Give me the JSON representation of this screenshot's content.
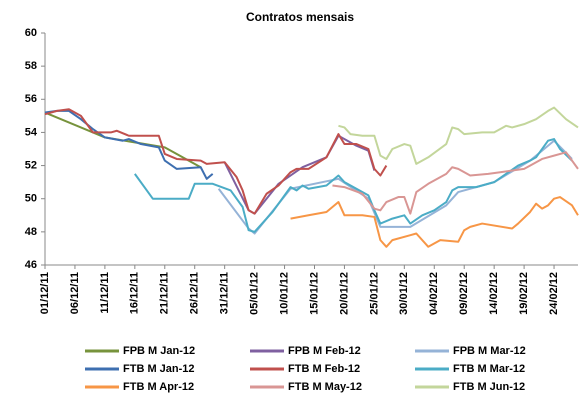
{
  "chart_data": {
    "type": "line",
    "title": "Contratos mensais",
    "xlim": [
      "01/12/11",
      "28/02/12"
    ],
    "xticks": [
      "01/12/11",
      "06/12/11",
      "11/12/11",
      "16/12/11",
      "21/12/11",
      "26/12/11",
      "31/12/11",
      "05/01/12",
      "10/01/12",
      "15/01/12",
      "20/01/12",
      "25/01/12",
      "30/01/12",
      "04/02/12",
      "09/02/12",
      "14/02/12",
      "19/02/12",
      "24/02/12"
    ],
    "ylim": [
      46,
      60
    ],
    "yticks": [
      46,
      48,
      50,
      52,
      54,
      56,
      58,
      60
    ],
    "grid": false,
    "legend": "bottom",
    "series": [
      {
        "name": "FPB M Jan-12",
        "color": "#77933c",
        "x": [
          "01/12/11",
          "11/12/11",
          "21/12/11",
          "27/12/11"
        ],
        "values": [
          55.2,
          53.7,
          53.1,
          51.9
        ]
      },
      {
        "name": "FPB M Feb-12",
        "color": "#7f60a0",
        "x": [
          "31/12/11",
          "04/01/12",
          "05/01/12",
          "09/01/12",
          "13/01/12",
          "17/01/12",
          "19/01/12",
          "22/01/12",
          "24/01/12",
          "25/01/12"
        ],
        "values": [
          52.2,
          49.3,
          49.1,
          50.9,
          51.9,
          52.5,
          53.8,
          53.2,
          52.9,
          51.7
        ]
      },
      {
        "name": "FPB M Mar-12",
        "color": "#95b3d7",
        "x": [
          "30/12/11",
          "04/01/12",
          "05/01/12",
          "11/01/12",
          "19/01/12",
          "24/01/12",
          "26/01/12",
          "31/01/12",
          "06/02/12",
          "08/02/12",
          "14/02/12",
          "20/02/12",
          "24/02/12",
          "27/02/12"
        ],
        "values": [
          50.6,
          48.2,
          47.9,
          50.6,
          51.2,
          50.0,
          48.3,
          48.3,
          49.6,
          50.4,
          51.0,
          52.3,
          53.5,
          52.4
        ]
      },
      {
        "name": "FTB M Jan-12",
        "color": "#3e6fb0",
        "x": [
          "01/12/11",
          "03/12/11",
          "05/12/11",
          "07/12/11",
          "09/12/11",
          "11/12/11",
          "14/12/11",
          "15/12/11",
          "17/12/11",
          "20/12/11",
          "21/12/11",
          "23/12/11",
          "27/12/11",
          "28/12/11",
          "29/12/11"
        ],
        "values": [
          55.2,
          55.3,
          55.3,
          54.8,
          54.2,
          53.7,
          53.5,
          53.6,
          53.3,
          53.1,
          52.3,
          51.8,
          51.9,
          51.2,
          51.5
        ]
      },
      {
        "name": "FTB M Feb-12",
        "color": "#c0504d",
        "x": [
          "01/12/11",
          "03/12/11",
          "05/12/11",
          "07/12/11",
          "09/12/11",
          "12/12/11",
          "13/12/11",
          "15/12/11",
          "20/12/11",
          "21/12/11",
          "23/12/11",
          "27/12/11",
          "28/12/11",
          "31/12/11",
          "02/01/12",
          "03/01/12",
          "04/01/12",
          "05/01/12",
          "07/01/12",
          "09/01/12",
          "11/01/12",
          "12/01/12",
          "14/01/12",
          "17/01/12",
          "19/01/12",
          "20/01/12",
          "22/01/12",
          "24/01/12",
          "25/01/12",
          "26/01/12",
          "27/01/12"
        ],
        "values": [
          55.1,
          55.3,
          55.4,
          55.0,
          54.0,
          54.0,
          54.1,
          53.8,
          53.8,
          52.7,
          52.4,
          52.3,
          52.1,
          52.2,
          51.3,
          50.5,
          49.3,
          49.1,
          50.3,
          50.8,
          51.6,
          51.8,
          51.8,
          52.5,
          53.9,
          53.3,
          53.3,
          53.0,
          51.8,
          51.4,
          52.0
        ]
      },
      {
        "name": "FTB M Mar-12",
        "color": "#4bacc6",
        "x": [
          "16/12/11",
          "19/12/11",
          "25/12/11",
          "26/12/11",
          "29/12/11",
          "01/01/12",
          "03/01/12",
          "04/01/12",
          "05/01/12",
          "08/01/12",
          "11/01/12",
          "12/01/12",
          "13/01/12",
          "14/01/12",
          "17/01/12",
          "19/01/12",
          "20/01/12",
          "24/01/12",
          "25/01/12",
          "26/01/12",
          "28/01/12",
          "30/01/12",
          "31/01/12",
          "02/02/12",
          "04/02/12",
          "06/02/12",
          "07/02/12",
          "08/02/12",
          "11/02/12",
          "14/02/12",
          "16/02/12",
          "18/02/12",
          "20/02/12",
          "21/02/12",
          "23/02/12",
          "24/02/12",
          "25/02/12",
          "27/02/12"
        ],
        "values": [
          51.5,
          50.0,
          50.0,
          50.9,
          50.9,
          50.5,
          49.5,
          48.1,
          48.0,
          49.2,
          50.7,
          50.5,
          50.8,
          50.6,
          50.8,
          51.4,
          51.0,
          50.2,
          49.3,
          48.5,
          48.8,
          49.0,
          48.5,
          49.0,
          49.3,
          49.8,
          50.5,
          50.7,
          50.7,
          51.0,
          51.5,
          52.0,
          52.3,
          52.5,
          53.5,
          53.6,
          53.0,
          52.3
        ]
      },
      {
        "name": "FTB M Apr-12",
        "color": "#f79646",
        "x": [
          "11/01/12",
          "14/01/12",
          "17/01/12",
          "19/01/12",
          "20/01/12",
          "23/01/12",
          "25/01/12",
          "26/01/12",
          "27/01/12",
          "28/01/12",
          "31/01/12",
          "01/02/12",
          "03/02/12",
          "05/02/12",
          "08/02/12",
          "09/02/12",
          "10/02/12",
          "12/02/12",
          "17/02/12",
          "18/02/12",
          "20/02/12",
          "21/02/12",
          "22/02/12",
          "23/02/12",
          "24/02/12",
          "25/02/12",
          "27/02/12",
          "28/02/12"
        ],
        "values": [
          48.8,
          49.0,
          49.2,
          49.8,
          49.0,
          49.0,
          48.9,
          47.5,
          47.1,
          47.5,
          47.8,
          47.9,
          47.1,
          47.5,
          47.4,
          48.1,
          48.3,
          48.5,
          48.2,
          48.5,
          49.2,
          49.7,
          49.4,
          49.6,
          50.0,
          50.1,
          49.6,
          49.0
        ]
      },
      {
        "name": "FTB M May-12",
        "color": "#d99694",
        "x": [
          "18/01/12",
          "20/01/12",
          "23/01/12",
          "25/01/12",
          "26/01/12",
          "27/01/12",
          "29/01/12",
          "30/01/12",
          "31/01/12",
          "01/02/12",
          "03/02/12",
          "06/02/12",
          "07/02/12",
          "08/02/12",
          "10/02/12",
          "13/02/12",
          "15/02/12",
          "17/02/12",
          "19/02/12",
          "20/02/12",
          "22/02/12",
          "24/02/12",
          "26/02/12",
          "28/02/12"
        ],
        "values": [
          50.8,
          50.7,
          50.3,
          49.4,
          49.3,
          49.8,
          50.1,
          50.1,
          49.1,
          50.4,
          50.9,
          51.5,
          51.9,
          51.8,
          51.4,
          51.5,
          51.6,
          51.7,
          51.8,
          52.0,
          52.4,
          52.6,
          52.8,
          51.8
        ]
      },
      {
        "name": "FTB M Jun-12",
        "color": "#c3d69b",
        "x": [
          "19/01/12",
          "20/01/12",
          "21/01/12",
          "23/01/12",
          "25/01/12",
          "26/01/12",
          "27/01/12",
          "28/01/12",
          "30/01/12",
          "31/01/12",
          "01/02/12",
          "03/02/12",
          "06/02/12",
          "07/02/12",
          "08/02/12",
          "09/02/12",
          "12/02/12",
          "14/02/12",
          "16/02/12",
          "17/02/12",
          "19/02/12",
          "21/02/12",
          "23/02/12",
          "24/02/12",
          "26/02/12",
          "28/02/12"
        ],
        "values": [
          54.4,
          54.3,
          53.9,
          53.8,
          53.8,
          52.6,
          52.4,
          53.0,
          53.3,
          53.2,
          52.1,
          52.5,
          53.3,
          54.3,
          54.2,
          53.9,
          54.0,
          54.0,
          54.4,
          54.3,
          54.5,
          54.8,
          55.3,
          55.5,
          54.8,
          54.3
        ]
      }
    ]
  }
}
